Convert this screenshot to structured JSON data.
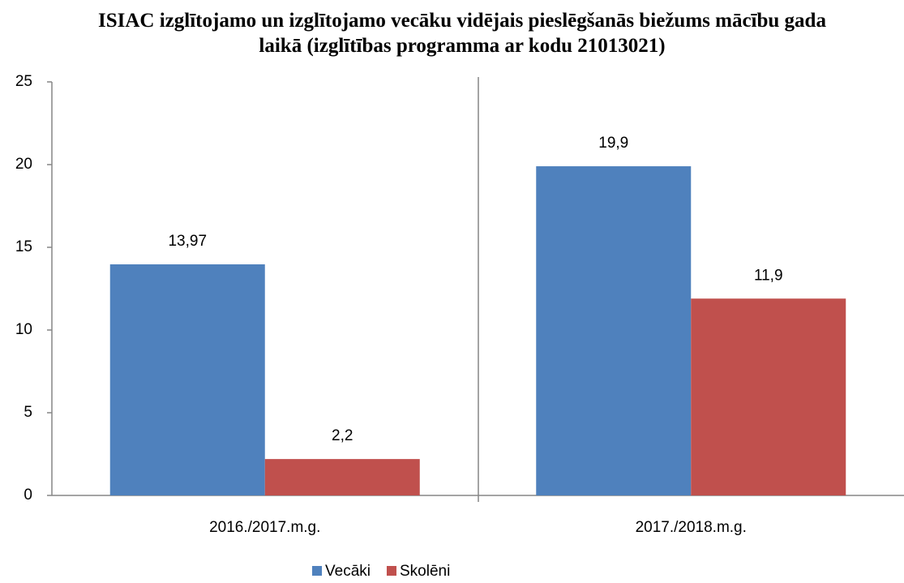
{
  "chart_data": {
    "type": "bar",
    "title": "ISIAC izglītojamo un izglītojamo vecāku vidējais pieslēgšanās biežums mācību gada laikā (izglītības programma ar kodu 21013021)",
    "categories": [
      "2016./2017.m.g.",
      "2017./2018.m.g."
    ],
    "series": [
      {
        "name": "Vecāki",
        "color": "#4f81bd",
        "values": [
          13.97,
          19.9
        ],
        "value_labels": [
          "13,97",
          "19,9"
        ]
      },
      {
        "name": "Skolēni",
        "color": "#c0504d",
        "values": [
          2.2,
          11.9
        ],
        "value_labels": [
          "2,2",
          "11,9"
        ]
      }
    ],
    "ylim": [
      0,
      25
    ],
    "yticks": [
      0,
      5,
      10,
      15,
      20,
      25
    ],
    "legend": "bottom"
  }
}
